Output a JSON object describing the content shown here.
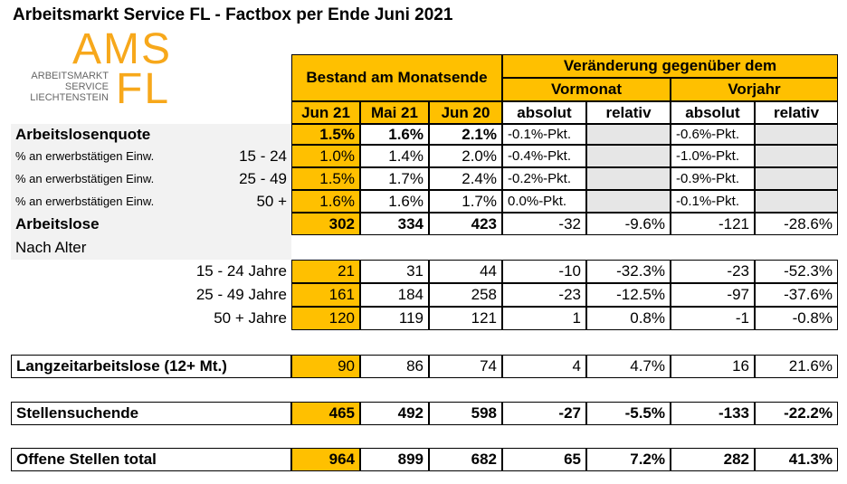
{
  "header": {
    "title": "Arbeitsmarkt Service FL - Factbox per Ende Juni 2021"
  },
  "logo": {
    "main": "AMS",
    "sub": "FL",
    "lines": [
      "ARBEITSMARKT",
      "SERVICE",
      "LIECHTENSTEIN"
    ]
  },
  "table": {
    "group_header": "Bestand am Monatsende",
    "change_header": "Veränderung gegenüber dem",
    "change_groups": [
      "Vormonat",
      "Vorjahr"
    ],
    "columns": [
      "Jun 21",
      "Mai 21",
      "Jun 20",
      "absolut",
      "relativ",
      "absolut",
      "relativ"
    ],
    "rows": [
      {
        "label": "Arbeitslosenquote",
        "cells": [
          "1.5%",
          "1.6%",
          "2.1%",
          "-0.1%-Pkt.",
          null,
          "-0.6%-Pkt.",
          null
        ]
      },
      {
        "label": "% an erwerbstätigen Einw.",
        "range": "15 - 24",
        "cells": [
          "1.0%",
          "1.4%",
          "2.0%",
          "-0.4%-Pkt.",
          null,
          "-1.0%-Pkt.",
          null
        ]
      },
      {
        "label": "% an erwerbstätigen Einw.",
        "range": "25 - 49",
        "cells": [
          "1.5%",
          "1.7%",
          "2.4%",
          "-0.2%-Pkt.",
          null,
          "-0.9%-Pkt.",
          null
        ]
      },
      {
        "label": "% an erwerbstätigen Einw.",
        "range": "50 +",
        "cells": [
          "1.6%",
          "1.6%",
          "1.7%",
          "0.0%-Pkt.",
          null,
          "-0.1%-Pkt.",
          null
        ]
      },
      {
        "label": "Arbeitslose",
        "cells": [
          "302",
          "334",
          "423",
          "-32",
          "-9.6%",
          "-121",
          "-28.6%"
        ]
      },
      {
        "label": "Nach Alter"
      },
      {
        "range": "15 - 24 Jahre",
        "cells": [
          "21",
          "31",
          "44",
          "-10",
          "-32.3%",
          "-23",
          "-52.3%"
        ]
      },
      {
        "range": "25 - 49 Jahre",
        "cells": [
          "161",
          "184",
          "258",
          "-23",
          "-12.5%",
          "-97",
          "-37.6%"
        ]
      },
      {
        "range": "50 + Jahre",
        "cells": [
          "120",
          "119",
          "121",
          "1",
          "0.8%",
          "-1",
          "-0.8%"
        ]
      },
      {
        "label": "Langzeitarbeitslose (12+ Mt.)",
        "cells": [
          "90",
          "86",
          "74",
          "4",
          "4.7%",
          "16",
          "21.6%"
        ]
      },
      {
        "label": "Stellensuchende",
        "cells": [
          "465",
          "492",
          "598",
          "-27",
          "-5.5%",
          "-133",
          "-22.2%"
        ]
      },
      {
        "label": "Offene Stellen total",
        "cells": [
          "964",
          "899",
          "682",
          "65",
          "7.2%",
          "282",
          "41.3%"
        ]
      }
    ]
  }
}
